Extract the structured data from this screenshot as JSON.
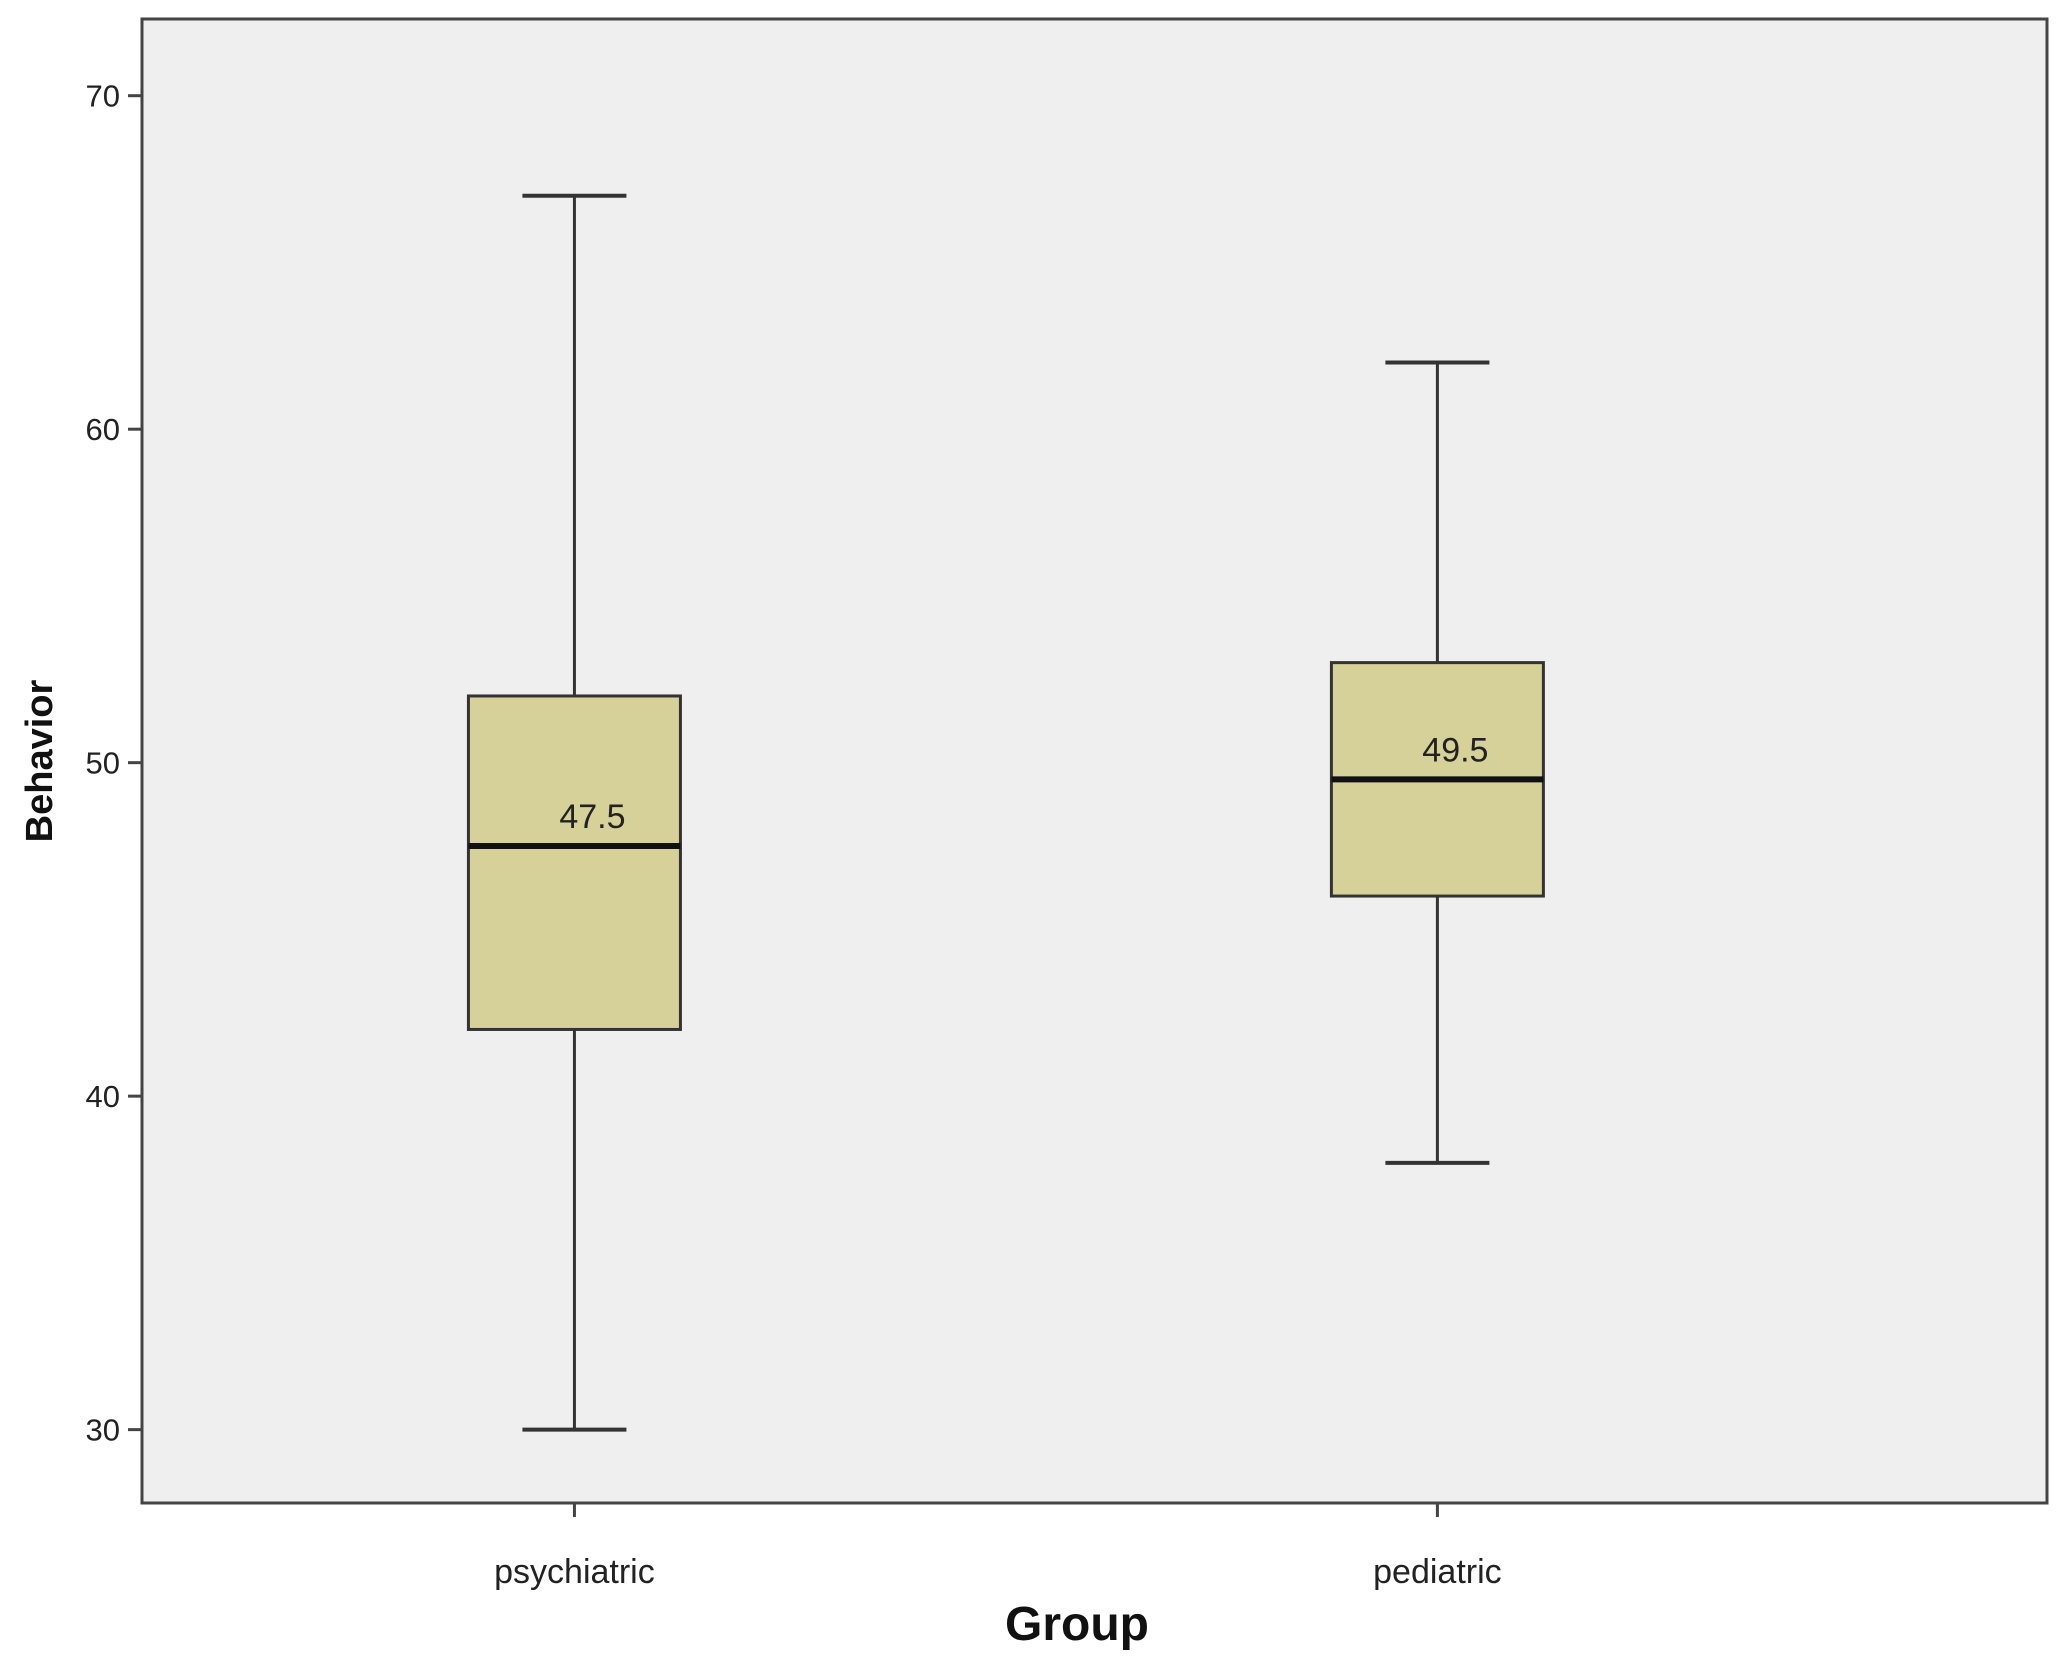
{
  "chart_data": {
    "type": "boxplot",
    "title": "",
    "xlabel": "Group",
    "ylabel": "Behavior",
    "ylim": [
      27.8,
      72.3
    ],
    "yticks": [
      30,
      40,
      50,
      60,
      70
    ],
    "ytick_labels": [
      "30",
      "40",
      "50",
      "60",
      "70"
    ],
    "grid": false,
    "legend": "none",
    "categories": [
      "psychiatric",
      "pediatric"
    ],
    "boxes": [
      {
        "category": "psychiatric",
        "min": 30,
        "q1": 42,
        "median": 47.5,
        "q3": 52,
        "max": 67,
        "median_label": "47.5"
      },
      {
        "category": "pediatric",
        "min": 38,
        "q1": 46,
        "median": 49.5,
        "q3": 53,
        "max": 62,
        "median_label": "49.5"
      }
    ],
    "colors": {
      "box_fill": "#d5d199",
      "plot_background": "#efeff0",
      "line": "#333333",
      "median_line": "#111111"
    }
  }
}
